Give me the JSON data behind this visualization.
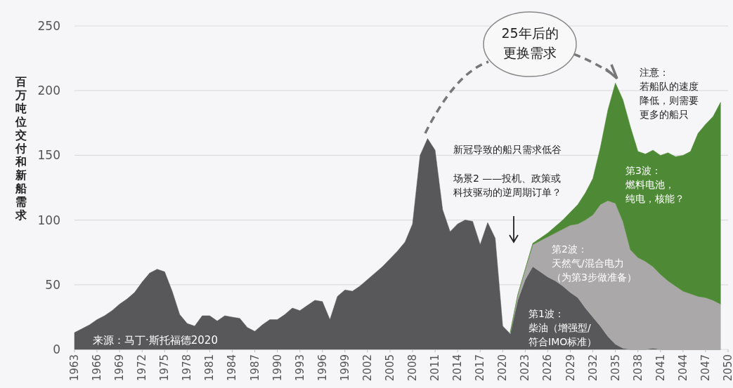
{
  "chart_data": {
    "type": "area",
    "stacked": true,
    "ylabel": "百万吨位交付和新船需求",
    "x": [
      1963,
      1964,
      1965,
      1966,
      1967,
      1968,
      1969,
      1970,
      1971,
      1972,
      1973,
      1974,
      1975,
      1976,
      1977,
      1978,
      1979,
      1980,
      1981,
      1982,
      1983,
      1984,
      1985,
      1986,
      1987,
      1988,
      1989,
      1990,
      1991,
      1992,
      1993,
      1994,
      1995,
      1996,
      1997,
      1998,
      1999,
      2000,
      2001,
      2002,
      2003,
      2004,
      2005,
      2006,
      2007,
      2008,
      2009,
      2010,
      2011,
      2012,
      2013,
      2014,
      2015,
      2016,
      2017,
      2018,
      2019,
      2020,
      2021,
      2022,
      2023,
      2024,
      2025,
      2026,
      2027,
      2028,
      2029,
      2030,
      2031,
      2032,
      2033,
      2034,
      2035,
      2036,
      2037,
      2038,
      2039,
      2040,
      2041,
      2042,
      2043,
      2044,
      2045,
      2046,
      2047,
      2048,
      2049
    ],
    "xlim": [
      1963,
      2050
    ],
    "xticks": [
      1963,
      1966,
      1969,
      1972,
      1975,
      1978,
      1981,
      1984,
      1987,
      1990,
      1993,
      1996,
      1999,
      2002,
      2005,
      2008,
      2011,
      2014,
      2017,
      2020,
      2023,
      2026,
      2029,
      2032,
      2035,
      2038,
      2041,
      2044,
      2047,
      2050
    ],
    "ylim": [
      0,
      250
    ],
    "yticks": [
      0,
      50,
      100,
      150,
      200,
      250
    ],
    "grid": "y",
    "series": [
      {
        "color": "#58585a",
        "values": [
          13,
          16,
          19,
          23,
          26,
          30,
          35,
          39,
          44,
          52,
          59,
          62,
          60,
          45,
          27,
          20,
          18,
          26,
          26,
          22,
          26,
          25,
          24,
          17,
          14,
          19,
          23,
          23,
          27,
          32,
          30,
          34,
          38,
          37,
          23,
          41,
          46,
          45,
          49,
          54,
          59,
          64,
          70,
          76,
          83,
          97,
          150,
          163,
          154,
          108,
          91,
          97,
          100,
          99,
          81,
          98,
          86,
          18,
          12,
          38,
          54,
          64,
          60,
          56,
          53,
          49,
          44,
          40,
          32,
          25,
          18,
          10,
          4,
          1,
          0,
          0,
          0,
          1,
          0,
          0,
          0,
          0,
          0,
          0,
          0,
          0,
          0
        ]
      },
      {
        "color": "#aaa8a8",
        "values": [
          null,
          null,
          null,
          null,
          null,
          null,
          null,
          null,
          null,
          null,
          null,
          null,
          null,
          null,
          null,
          null,
          null,
          null,
          null,
          null,
          null,
          null,
          null,
          null,
          null,
          null,
          null,
          null,
          null,
          null,
          null,
          null,
          null,
          null,
          null,
          null,
          null,
          null,
          null,
          null,
          null,
          null,
          null,
          null,
          null,
          null,
          null,
          null,
          null,
          null,
          null,
          null,
          null,
          null,
          null,
          null,
          null,
          null,
          1,
          4,
          8,
          17,
          24,
          31,
          37,
          44,
          52,
          57,
          68,
          79,
          94,
          105,
          109,
          98,
          77,
          71,
          68,
          63,
          58,
          53,
          49,
          45,
          43,
          41,
          40,
          38,
          35
        ]
      },
      {
        "color": "#4e8a35",
        "values": [
          null,
          null,
          null,
          null,
          null,
          null,
          null,
          null,
          null,
          null,
          null,
          null,
          null,
          null,
          null,
          null,
          null,
          null,
          null,
          null,
          null,
          null,
          null,
          null,
          null,
          null,
          null,
          null,
          null,
          null,
          null,
          null,
          null,
          null,
          null,
          null,
          null,
          null,
          null,
          null,
          null,
          null,
          null,
          null,
          null,
          null,
          null,
          null,
          null,
          null,
          null,
          null,
          null,
          null,
          null,
          null,
          null,
          null,
          0,
          0,
          0,
          1,
          2,
          3,
          5,
          7,
          10,
          15,
          21,
          28,
          44,
          70,
          93,
          94,
          95,
          82,
          83,
          90,
          92,
          99,
          100,
          105,
          110,
          126,
          134,
          142,
          156
        ]
      }
    ],
    "annotations": [
      "来源：马丁·斯托福德2020",
      "25年后的更换需求",
      "注意：若船队的速度降低，则需要更多的船只",
      "新冠导致的船只需求低谷",
      "场景2 ——投机、政策或科技驱动的逆周期订单？",
      "第3波：燃料电池，纯电，核能？",
      "第2波：天然气/混合电力（为第3步做准备）",
      "第1波：柴油（增强型/符合IMO标准）"
    ]
  }
}
